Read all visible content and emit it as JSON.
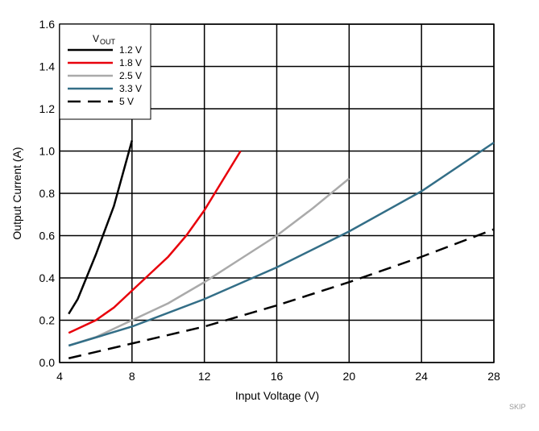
{
  "chart_data": {
    "type": "line",
    "xlabel": "Input Voltage (V)",
    "ylabel": "Output Current (A)",
    "legend_title": "V",
    "legend_title_sub": "OUT",
    "annotation": "SKIP",
    "xlim": [
      4,
      28
    ],
    "xticks": [
      4,
      8,
      12,
      16,
      20,
      24,
      28
    ],
    "ylim": [
      0,
      1.6
    ],
    "yticks": [
      {
        "value": 0,
        "label": "0.0"
      },
      0.2,
      0.4,
      0.6,
      0.8,
      {
        "value": 1,
        "label": "1.0"
      },
      1.2,
      1.4,
      1.6
    ],
    "grid": true,
    "legend": "upper left",
    "series": [
      {
        "name": "1.2 V",
        "color": "#000000",
        "style": "solid",
        "x": [
          4.5,
          5,
          6,
          7,
          8
        ],
        "values": [
          0.23,
          0.3,
          0.51,
          0.74,
          1.05
        ]
      },
      {
        "name": "1.8 V",
        "color": "#e8000b",
        "style": "solid",
        "x": [
          4.5,
          6,
          7,
          8,
          9,
          10,
          11,
          12,
          13,
          14
        ],
        "values": [
          0.14,
          0.2,
          0.26,
          0.34,
          0.42,
          0.5,
          0.6,
          0.72,
          0.86,
          1.0
        ]
      },
      {
        "name": "2.5 V",
        "color": "#aaaaaa",
        "style": "solid",
        "x": [
          4.5,
          6,
          8,
          10,
          12,
          14,
          16,
          18,
          20
        ],
        "values": [
          0.08,
          0.12,
          0.2,
          0.28,
          0.38,
          0.49,
          0.6,
          0.73,
          0.87
        ]
      },
      {
        "name": "3.3 V",
        "color": "#336e87",
        "style": "solid",
        "x": [
          4.5,
          8,
          12,
          16,
          20,
          24,
          28
        ],
        "values": [
          0.08,
          0.17,
          0.3,
          0.45,
          0.62,
          0.81,
          1.04
        ]
      },
      {
        "name": "5 V",
        "color": "#000000",
        "style": "dashed",
        "x": [
          4.5,
          8,
          12,
          16,
          20,
          24,
          28
        ],
        "values": [
          0.02,
          0.09,
          0.17,
          0.27,
          0.38,
          0.5,
          0.63
        ]
      }
    ]
  }
}
